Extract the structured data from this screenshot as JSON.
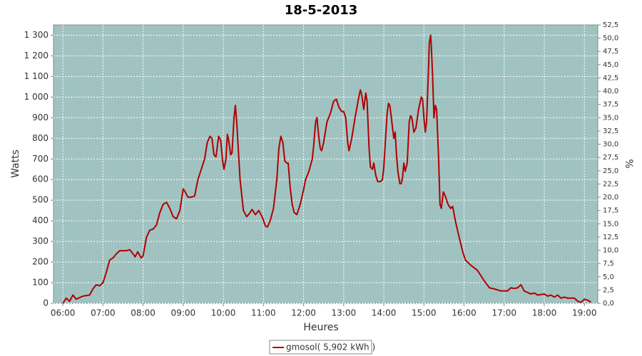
{
  "chart_data": {
    "type": "line",
    "title": "18-5-2013",
    "xlabel": "Heures",
    "ylabel": "Watts",
    "y2label": "%",
    "x": [
      "06:00",
      "06:05",
      "06:10",
      "06:15",
      "06:20",
      "06:30",
      "06:40",
      "06:45",
      "06:50",
      "06:55",
      "07:00",
      "07:05",
      "07:10",
      "07:15",
      "07:20",
      "07:25",
      "07:35",
      "07:40",
      "07:45",
      "07:48",
      "07:52",
      "07:57",
      "08:00",
      "08:05",
      "08:10",
      "08:15",
      "08:20",
      "08:25",
      "08:30",
      "08:35",
      "08:40",
      "08:45",
      "08:50",
      "08:55",
      "09:00",
      "09:03",
      "09:07",
      "09:12",
      "09:17",
      "09:22",
      "09:27",
      "09:32",
      "09:36",
      "09:40",
      "09:43",
      "09:46",
      "09:49",
      "09:53",
      "09:56",
      "09:59",
      "10:01",
      "10:04",
      "10:06",
      "10:08",
      "10:11",
      "10:13",
      "10:16",
      "10:18",
      "10:20",
      "10:25",
      "10:30",
      "10:35",
      "10:40",
      "10:43",
      "10:48",
      "10:53",
      "10:58",
      "11:03",
      "11:06",
      "11:10",
      "11:15",
      "11:20",
      "11:23",
      "11:26",
      "11:29",
      "11:32",
      "11:35",
      "11:37",
      "11:40",
      "11:43",
      "11:46",
      "11:50",
      "11:55",
      "12:00",
      "12:03",
      "12:08",
      "12:13",
      "12:15",
      "12:18",
      "12:20",
      "12:23",
      "12:25",
      "12:27",
      "12:30",
      "12:35",
      "12:40",
      "12:45",
      "12:49",
      "12:53",
      "12:57",
      "13:00",
      "13:03",
      "13:06",
      "13:08",
      "13:12",
      "13:17",
      "13:22",
      "13:25",
      "13:27",
      "13:30",
      "13:33",
      "13:35",
      "13:38",
      "13:40",
      "13:43",
      "13:45",
      "13:48",
      "13:51",
      "13:55",
      "13:58",
      "14:00",
      "14:03",
      "14:05",
      "14:07",
      "14:09",
      "14:12",
      "14:15",
      "14:17",
      "14:19",
      "14:21",
      "14:24",
      "14:26",
      "14:28",
      "14:30",
      "14:32",
      "14:35",
      "14:38",
      "14:40",
      "14:42",
      "14:45",
      "14:48",
      "14:52",
      "14:56",
      "14:58",
      "15:00",
      "15:02",
      "15:04",
      "15:07",
      "15:08",
      "15:10",
      "15:11",
      "15:13",
      "15:15",
      "15:17",
      "15:19",
      "15:22",
      "15:24",
      "15:26",
      "15:29",
      "15:32",
      "15:36",
      "15:40",
      "15:43",
      "15:47",
      "15:52",
      "15:58",
      "16:02",
      "16:10",
      "16:20",
      "16:30",
      "16:38",
      "16:45",
      "16:55",
      "17:05",
      "17:10",
      "17:15",
      "17:20",
      "17:25",
      "17:30",
      "17:40",
      "17:45",
      "17:50",
      "18:00",
      "18:05",
      "18:10",
      "18:15",
      "18:20",
      "18:25",
      "18:30",
      "18:35",
      "18:45",
      "18:50",
      "18:55",
      "19:00",
      "19:05",
      "19:10"
    ],
    "series": [
      {
        "name": "gmosol( 5,902 kWh )",
        "color": "#b00000",
        "values": [
          0,
          25,
          10,
          40,
          20,
          35,
          40,
          70,
          90,
          85,
          100,
          150,
          210,
          220,
          240,
          255,
          255,
          260,
          240,
          225,
          250,
          220,
          230,
          320,
          355,
          360,
          380,
          440,
          480,
          490,
          460,
          420,
          410,
          450,
          555,
          540,
          515,
          515,
          520,
          600,
          650,
          700,
          780,
          810,
          800,
          720,
          710,
          810,
          790,
          690,
          650,
          700,
          820,
          790,
          720,
          730,
          900,
          960,
          880,
          600,
          450,
          420,
          440,
          455,
          430,
          450,
          420,
          375,
          370,
          400,
          460,
          600,
          750,
          810,
          780,
          690,
          680,
          680,
          560,
          480,
          440,
          430,
          480,
          550,
          600,
          640,
          700,
          760,
          880,
          900,
          800,
          750,
          740,
          780,
          880,
          920,
          980,
          990,
          950,
          930,
          930,
          900,
          780,
          740,
          800,
          900,
          990,
          1035,
          1010,
          940,
          1020,
          980,
          750,
          660,
          650,
          680,
          620,
          590,
          590,
          600,
          660,
          820,
          920,
          970,
          960,
          880,
          800,
          830,
          720,
          640,
          580,
          580,
          610,
          680,
          640,
          680,
          880,
          910,
          900,
          830,
          850,
          940,
          1000,
          990,
          900,
          830,
          880,
          1150,
          1260,
          1300,
          1250,
          1100,
          900,
          960,
          940,
          700,
          480,
          460,
          540,
          520,
          480,
          460,
          470,
          400,
          330,
          250,
          210,
          185,
          160,
          110,
          75,
          70,
          60,
          60,
          75,
          72,
          75,
          90,
          60,
          45,
          50,
          40,
          45,
          35,
          40,
          30,
          40,
          25,
          30,
          25,
          25,
          10,
          5,
          20,
          15,
          5
        ]
      }
    ],
    "xlim": [
      "05:46",
      "19:20"
    ],
    "xticks": [
      "06:00",
      "07:00",
      "08:00",
      "09:00",
      "10:00",
      "11:00",
      "12:00",
      "13:00",
      "14:00",
      "15:00",
      "16:00",
      "17:00",
      "18:00",
      "19:00"
    ],
    "ylim": [
      0,
      1350
    ],
    "yticks": [
      0,
      100,
      200,
      300,
      400,
      500,
      600,
      700,
      800,
      900,
      {
        "value": 1000,
        "label": "1 000"
      },
      {
        "value": 1100,
        "label": "1 100"
      },
      {
        "value": 1200,
        "label": "1 200"
      },
      {
        "value": 1300,
        "label": "1 300"
      }
    ],
    "y2lim": [
      0,
      52.5
    ],
    "y2ticks": [
      {
        "value": 0,
        "label": "0,0"
      },
      {
        "value": 2.5,
        "label": "2,5"
      },
      {
        "value": 5,
        "label": "5,0"
      },
      {
        "value": 7.5,
        "label": "7,5"
      },
      {
        "value": 10,
        "label": "10,0"
      },
      {
        "value": 12.5,
        "label": "12,5"
      },
      {
        "value": 15,
        "label": "15,0"
      },
      {
        "value": 17.5,
        "label": "17,5"
      },
      {
        "value": 20,
        "label": "20,0"
      },
      {
        "value": 22.5,
        "label": "22,5"
      },
      {
        "value": 25,
        "label": "25,0"
      },
      {
        "value": 27.5,
        "label": "27,5"
      },
      {
        "value": 30,
        "label": "30,0"
      },
      {
        "value": 32.5,
        "label": "32,5"
      },
      {
        "value": 35,
        "label": "35,0"
      },
      {
        "value": 37.5,
        "label": "37,5"
      },
      {
        "value": 40,
        "label": "40,0"
      },
      {
        "value": 42.5,
        "label": "42,5"
      },
      {
        "value": 45,
        "label": "45,0"
      },
      {
        "value": 47.5,
        "label": "47,5"
      },
      {
        "value": 50,
        "label": "50,0"
      },
      {
        "value": 52.5,
        "label": "52,5"
      }
    ],
    "grid": true,
    "legend": "bottom",
    "plot_background": "#a0c3c1"
  }
}
